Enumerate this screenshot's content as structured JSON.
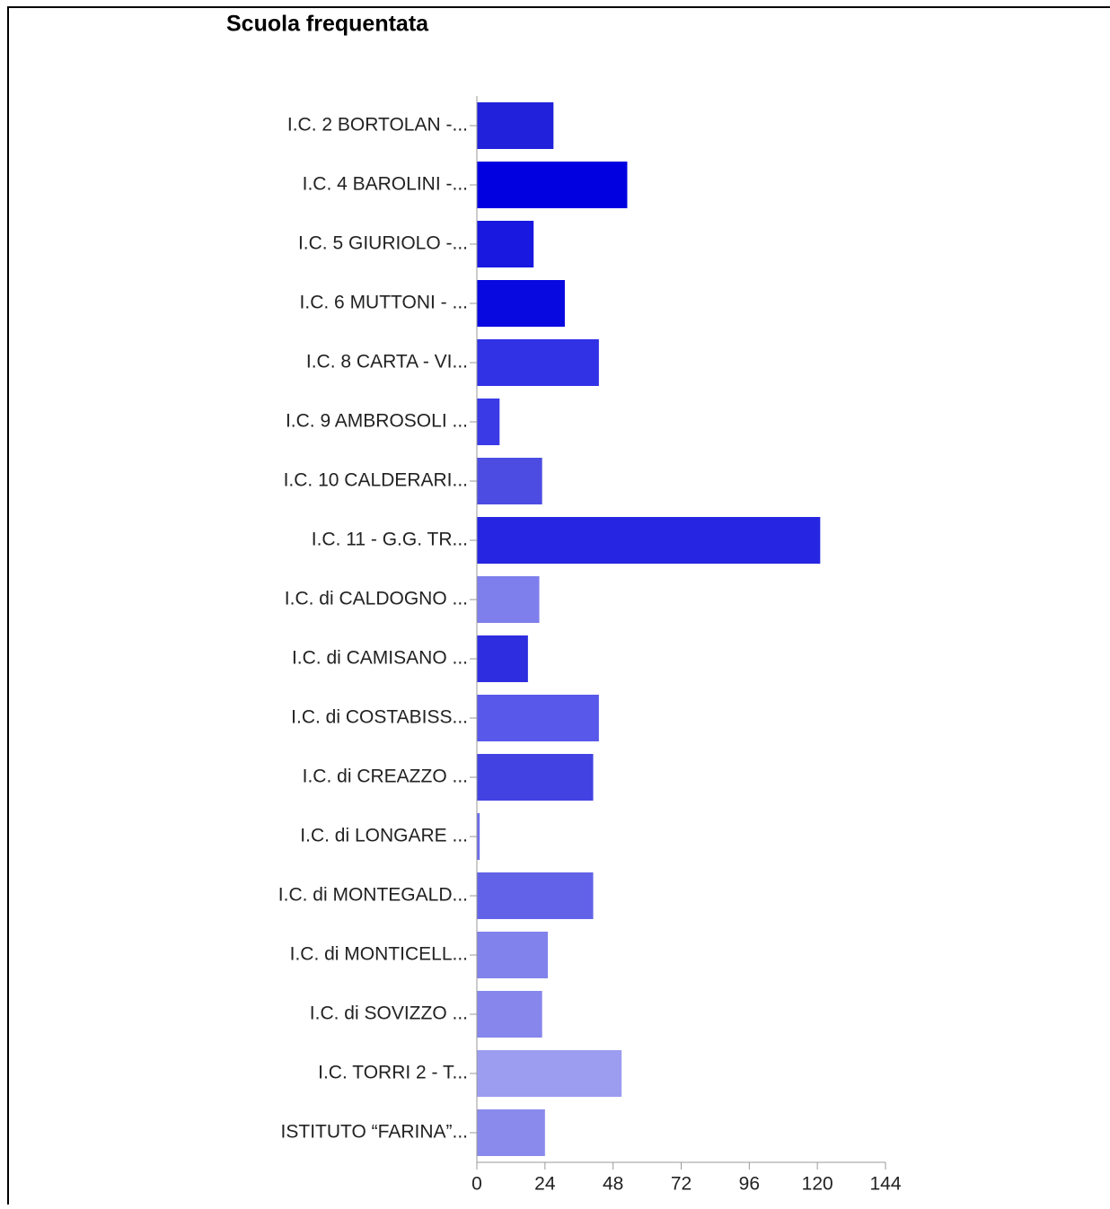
{
  "chart_data": {
    "type": "barh",
    "title": "Scuola frequentata",
    "categories": [
      "I.C. 2 BORTOLAN -...",
      "I.C. 4 BAROLINI -...",
      "I.C. 5 GIURIOLO -...",
      "I.C. 6 MUTTONI - ...",
      "I.C. 8 CARTA - VI...",
      "I.C. 9 AMBROSOLI ...",
      "I.C. 10 CALDERARI...",
      "I.C. 11 - G.G. TR...",
      "I.C. di CALDOGNO ...",
      "I.C. di CAMISANO ...",
      "I.C. di COSTABISS...",
      "I.C. di CREAZZO  ...",
      "I.C. di  LONGARE ...",
      "I.C. di MONTEGALD...",
      "I.C. di MONTICELL...",
      "I.C. di SOVIZZO  ...",
      "I.C. TORRI 2  - T...",
      "ISTITUTO “FARINA”..."
    ],
    "values": [
      27,
      53,
      20,
      31,
      43,
      8,
      23,
      121,
      22,
      18,
      43,
      41,
      1,
      41,
      25,
      23,
      51,
      24
    ],
    "colors": [
      "#2121dc",
      "#0000e0",
      "#1818e0",
      "#0808e0",
      "#3131e6",
      "#3a3ae6",
      "#4c4ce2",
      "#2626e2",
      "#7e7eec",
      "#2e2ee0",
      "#5858ea",
      "#4242e2",
      "#6c6cee",
      "#6262e8",
      "#8282ec",
      "#8686ec",
      "#9c9cf0",
      "#8a8aec"
    ],
    "xlim": [
      0,
      144
    ],
    "xticks": [
      0,
      24,
      48,
      72,
      96,
      120,
      144
    ]
  }
}
